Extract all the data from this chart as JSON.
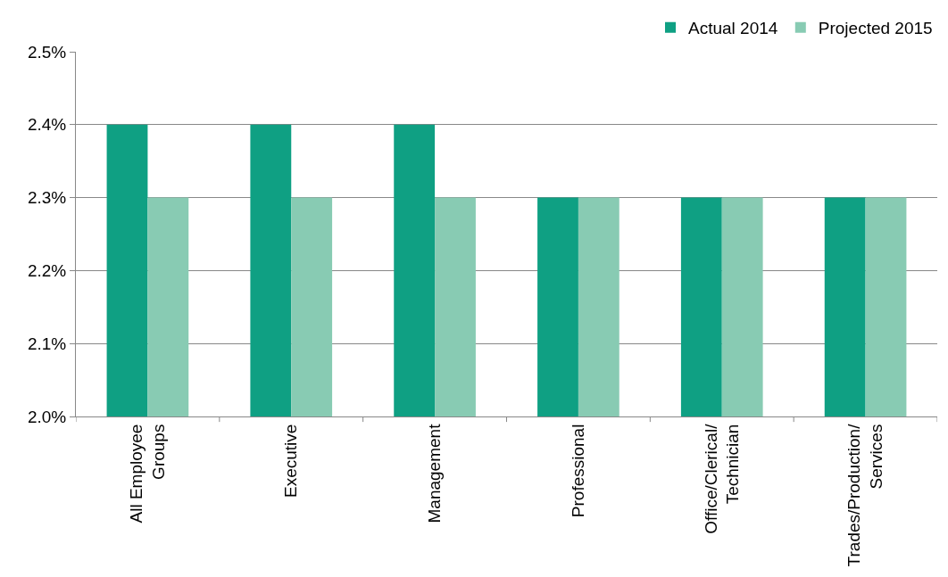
{
  "chart_data": {
    "type": "bar",
    "categories": [
      "All Employee\nGroups",
      "Executive",
      "Management",
      "Professional",
      "Office/Clerical/\nTechnician",
      "Trades/Production/\nServices"
    ],
    "series": [
      {
        "name": "Actual 2014",
        "color": "#0fa083",
        "values": [
          2.4,
          2.4,
          2.4,
          2.3,
          2.3,
          2.3
        ]
      },
      {
        "name": "Projected 2015",
        "color": "#88cbb3",
        "values": [
          2.3,
          2.3,
          2.3,
          2.3,
          2.3,
          2.3
        ]
      }
    ],
    "ylim": [
      2.0,
      2.5
    ],
    "yticks": [
      {
        "value": 2.0,
        "label": "2.0%"
      },
      {
        "value": 2.1,
        "label": "2.1%"
      },
      {
        "value": 2.2,
        "label": "2.2%"
      },
      {
        "value": 2.3,
        "label": "2.3%"
      },
      {
        "value": 2.4,
        "label": "2.4%"
      },
      {
        "value": 2.5,
        "label": "2.5%"
      }
    ],
    "grid": "y",
    "legend": "top right"
  }
}
